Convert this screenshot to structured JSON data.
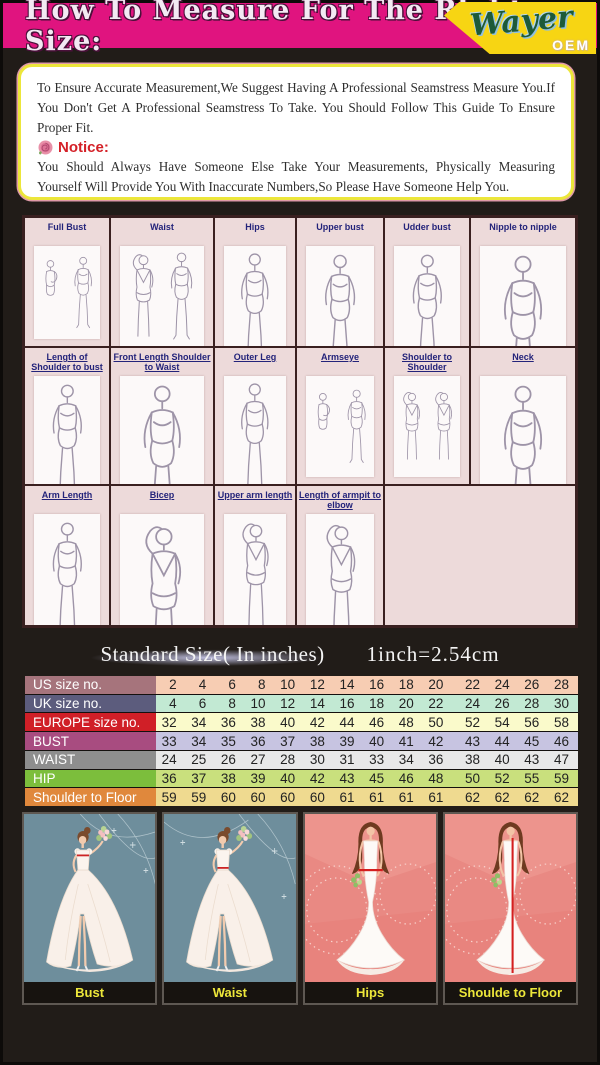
{
  "header": {
    "title": "How To Measure For The Right Size:",
    "brand": "Wayer",
    "brand_badge": "OEM"
  },
  "notice_box": {
    "intro": "To Ensure Accurate Measurement,We Suggest Having A Professional Seamstress Measure You.If You Don't Get A Professional Seamstress To Take. You Should Follow This Guide To Ensure Proper Fit.",
    "notice_label": "Notice:",
    "notice_text": "You Should Always Have Someone Else Take Your Measurements, Physically Measuring Yourself Will Provide You With Inaccurate Numbers,So Please Have Someone Help You."
  },
  "measurement_grid": {
    "rows": [
      [
        {
          "label": "Full Bust",
          "underline": false,
          "figures": [
            "fig-side",
            "fig-front"
          ]
        },
        {
          "label": "Waist",
          "underline": false,
          "figures": [
            "fig-back",
            "fig-front"
          ]
        },
        {
          "label": "Hips",
          "underline": false,
          "figures": [
            "fig-front"
          ]
        },
        {
          "label": "Upper bust",
          "underline": false,
          "figures": [
            "fig-front"
          ]
        },
        {
          "label": "Udder bust",
          "underline": false,
          "figures": [
            "fig-front"
          ]
        },
        {
          "label": "Nipple to nipple",
          "underline": false,
          "figures": [
            "fig-front"
          ]
        }
      ],
      [
        {
          "label": "Length of Shoulder to bust",
          "underline": true,
          "figures": [
            "fig-front"
          ]
        },
        {
          "label": "Front Length Shoulder to Waist",
          "underline": true,
          "figures": [
            "fig-front"
          ]
        },
        {
          "label": "Outer Leg",
          "underline": true,
          "figures": [
            "fig-front"
          ]
        },
        {
          "label": "Armseye",
          "underline": true,
          "figures": [
            "fig-side",
            "fig-front"
          ]
        },
        {
          "label": "Shoulder to Shoulder",
          "underline": true,
          "figures": [
            "fig-back",
            "fig-back"
          ]
        },
        {
          "label": "Neck",
          "underline": true,
          "figures": [
            "fig-front"
          ]
        }
      ],
      [
        {
          "label": "Arm Length",
          "underline": true,
          "figures": [
            "fig-front"
          ]
        },
        {
          "label": "Bicep",
          "underline": true,
          "figures": [
            "fig-back"
          ]
        },
        {
          "label": "Upper arm length",
          "underline": true,
          "figures": [
            "fig-back"
          ]
        },
        {
          "label": "Length of armpit to elbow",
          "underline": true,
          "figures": [
            "fig-back"
          ]
        },
        {
          "label": "",
          "underline": false,
          "span": true
        }
      ]
    ]
  },
  "size_section": {
    "title": "Standard Size( In inches)",
    "conversion": "1inch=2.54cm"
  },
  "size_table": {
    "rows": [
      {
        "label": "US size no.",
        "header_color": "#a6747c",
        "row_color": "#f7cdb3",
        "values": [
          2,
          4,
          6,
          8,
          10,
          12,
          14,
          16,
          18,
          20,
          22,
          24,
          26,
          28
        ]
      },
      {
        "label": "UK size no.",
        "header_color": "#5c5c7d",
        "row_color": "#c2e9d3",
        "values": [
          4,
          6,
          8,
          10,
          12,
          14,
          16,
          18,
          20,
          22,
          24,
          26,
          28,
          30
        ]
      },
      {
        "label": "EUROPE size no.",
        "header_color": "#d01f27",
        "row_color": "#fafacb",
        "values": [
          32,
          34,
          36,
          38,
          40,
          42,
          44,
          46,
          48,
          50,
          52,
          54,
          56,
          58
        ]
      },
      {
        "label": "BUST",
        "header_color": "#a84c80",
        "row_color": "#c7c4e1",
        "values": [
          33,
          34,
          35,
          36,
          37,
          38,
          39,
          40,
          41,
          42,
          43,
          44,
          45,
          46
        ]
      },
      {
        "label": "WAIST",
        "header_color": "#8e8e8e",
        "row_color": "#e8e8e8",
        "values": [
          24,
          25,
          26,
          27,
          28,
          30,
          31,
          33,
          34,
          36,
          38,
          40,
          43,
          47
        ]
      },
      {
        "label": "HIP",
        "header_color": "#7cbe3c",
        "row_color": "#c9e07d",
        "values": [
          36,
          37,
          38,
          39,
          40,
          42,
          43,
          45,
          46,
          48,
          50,
          52,
          55,
          59
        ]
      },
      {
        "label": "Shoulder to Floor",
        "header_color": "#e0883c",
        "row_color": "#efda90",
        "values": [
          59,
          59,
          60,
          60,
          60,
          60,
          61,
          61,
          61,
          61,
          62,
          62,
          62,
          62
        ]
      }
    ]
  },
  "bottom_panels": [
    {
      "label": "Bust"
    },
    {
      "label": "Waist"
    },
    {
      "label": "Hips"
    },
    {
      "label": "Shoulde to Floor"
    }
  ]
}
